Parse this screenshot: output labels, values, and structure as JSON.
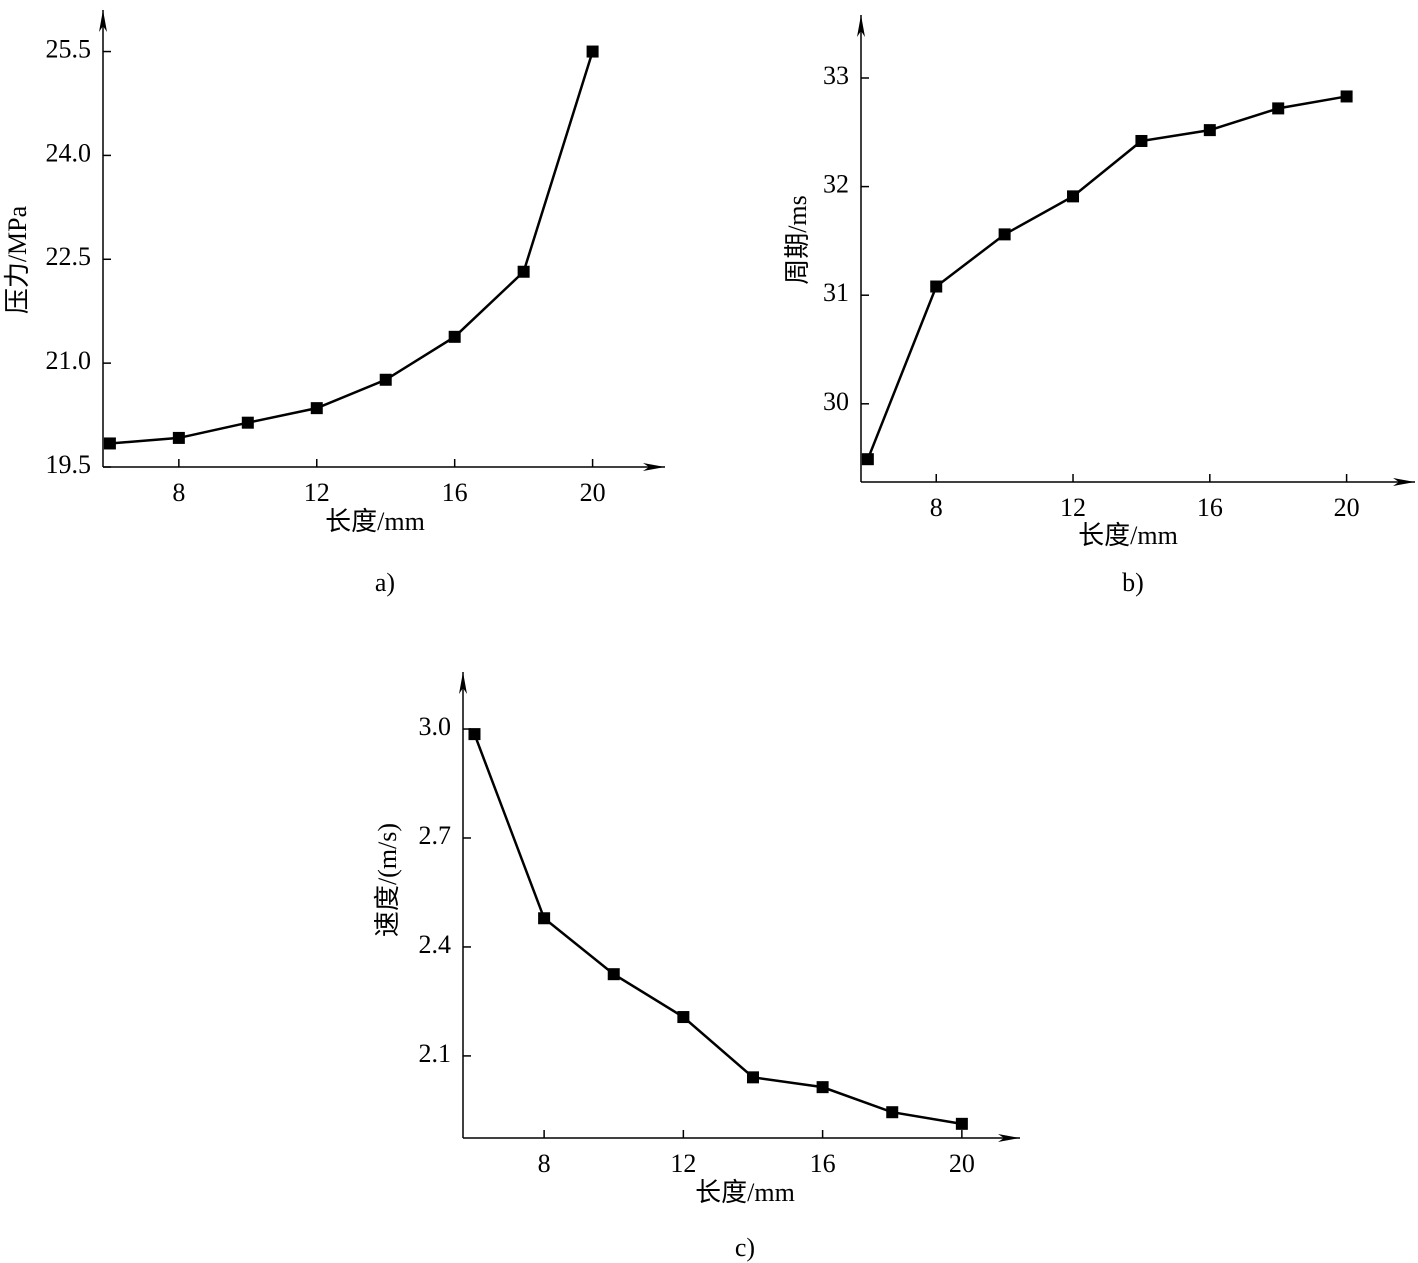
{
  "chart_data": [
    {
      "type": "line",
      "caption": "a)",
      "x_label": "长度/mm",
      "y_label": "压力/MPa",
      "x": [
        6,
        8,
        10,
        12,
        14,
        16,
        18,
        20
      ],
      "values": [
        19.84,
        19.92,
        20.14,
        20.35,
        20.76,
        21.38,
        22.32,
        25.5
      ],
      "color": "#000000",
      "xlim": [
        5.8,
        22.1
      ],
      "xticks": [
        8,
        12,
        16,
        20
      ],
      "ylim": [
        19.5,
        26.1
      ],
      "yticks": [
        19.5,
        {
          "value": 21,
          "label": "21.0"
        },
        22.5,
        {
          "value": 24,
          "label": "24.0"
        },
        25.5
      ]
    },
    {
      "type": "line",
      "caption": "b)",
      "x_label": "长度/mm",
      "y_label": "周期/ms",
      "x": [
        6,
        8,
        10,
        12,
        14,
        16,
        18,
        20
      ],
      "values": [
        29.49,
        31.08,
        31.56,
        31.91,
        32.42,
        32.52,
        32.72,
        32.83
      ],
      "color": "#000000",
      "xlim": [
        5.8,
        22.0
      ],
      "xticks": [
        8,
        12,
        16,
        20
      ],
      "ylim": [
        29.28,
        33.58
      ],
      "yticks": [
        30,
        31,
        32,
        33
      ]
    },
    {
      "type": "line",
      "caption": "c)",
      "x_label": "长度/mm",
      "y_label": "速度/(m/s)",
      "x": [
        6,
        8,
        10,
        12,
        14,
        16,
        18,
        20
      ],
      "values": [
        2.986,
        2.479,
        2.325,
        2.207,
        2.041,
        2.014,
        1.945,
        1.913
      ],
      "color": "#000000",
      "xlim": [
        5.67,
        21.67
      ],
      "xticks": [
        8,
        12,
        16,
        20
      ],
      "ylim": [
        1.874,
        3.157
      ],
      "yticks": [
        2.1,
        2.4,
        2.7,
        {
          "value": 3,
          "label": "3.0"
        }
      ]
    }
  ]
}
